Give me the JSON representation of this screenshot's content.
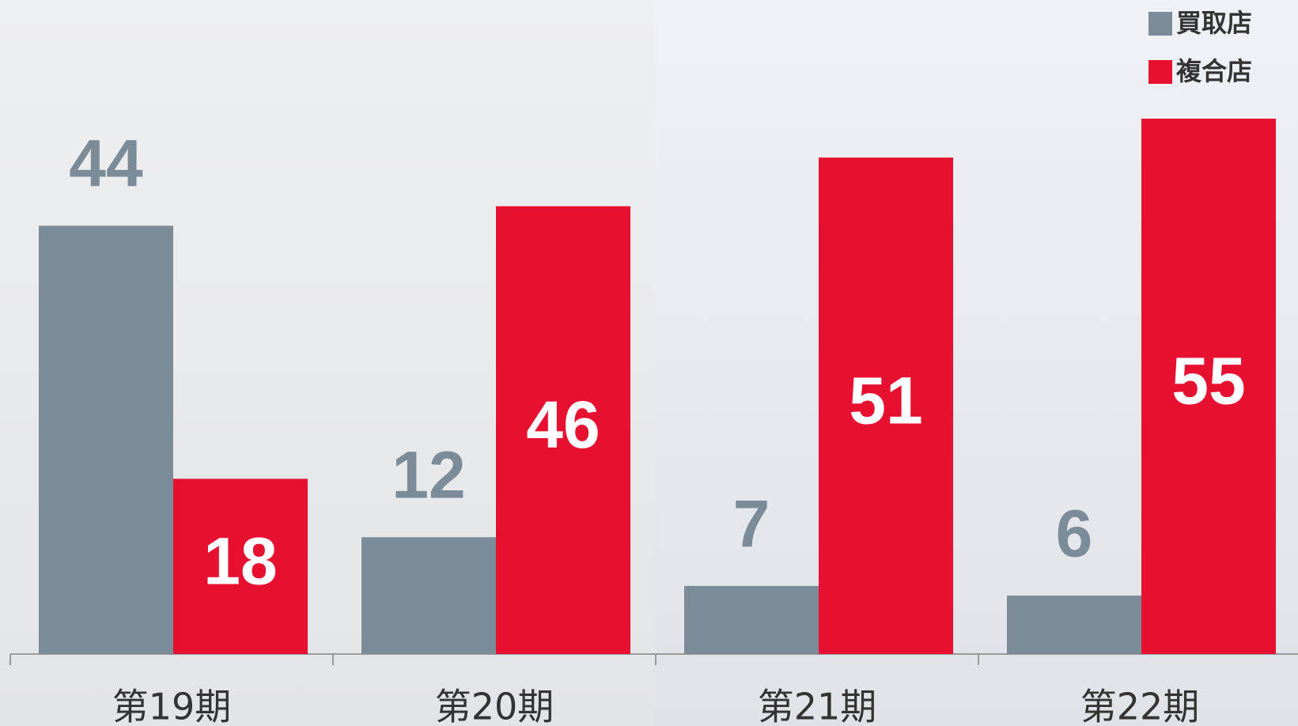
{
  "chart_data": {
    "type": "bar",
    "categories": [
      "第19期",
      "第20期",
      "第21期",
      "第22期"
    ],
    "series": [
      {
        "name": "買取店",
        "color": "#7b8b98",
        "values": [
          44,
          12,
          7,
          6
        ]
      },
      {
        "name": "複合店",
        "color": "#e81031",
        "values": [
          18,
          46,
          51,
          55
        ]
      }
    ],
    "legend": "top-right"
  }
}
